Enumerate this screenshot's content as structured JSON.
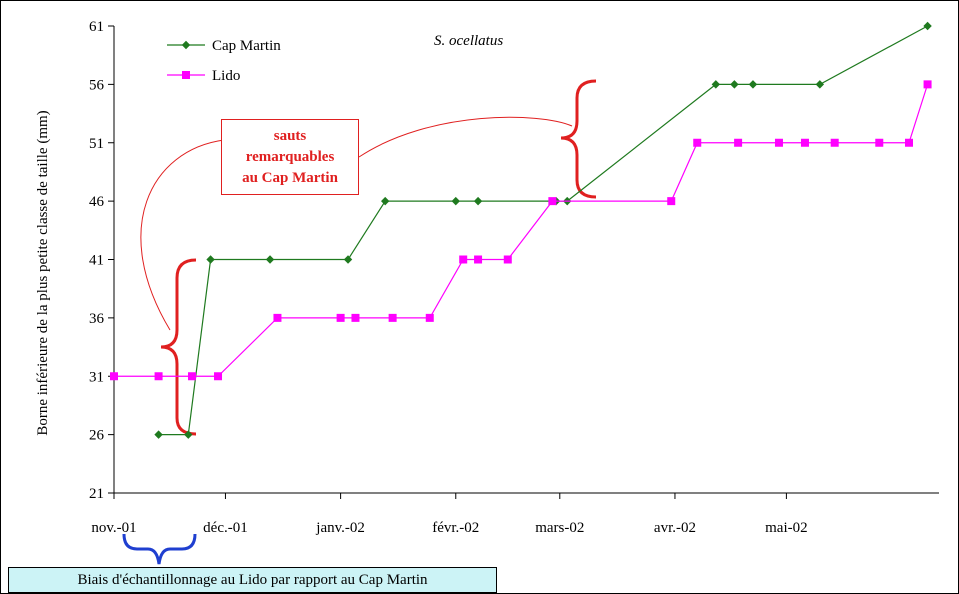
{
  "chart_data": {
    "type": "line",
    "title": "S. ocellatus",
    "ylabel": "Borne inférieure de la plus petite classe de taille (mm)",
    "xlabel": "",
    "ylim": [
      21,
      61
    ],
    "yticks": [
      21,
      26,
      31,
      36,
      41,
      46,
      51,
      56,
      61
    ],
    "xrange": [
      "2001-11-01",
      "2002-06-10"
    ],
    "xticks": [
      {
        "date": "2001-11-01",
        "label": "nov.-01"
      },
      {
        "date": "2001-12-01",
        "label": "déc.-01"
      },
      {
        "date": "2002-01-01",
        "label": "janv.-02"
      },
      {
        "date": "2002-02-01",
        "label": "févr.-02"
      },
      {
        "date": "2002-03-01",
        "label": "mars-02"
      },
      {
        "date": "2002-04-01",
        "label": "avr.-02"
      },
      {
        "date": "2002-05-01",
        "label": "mai-02"
      }
    ],
    "grid": false,
    "legend_position": "top-left",
    "series": [
      {
        "name": "Cap Martin",
        "color": "#1f7a1f",
        "marker": "diamond",
        "points": [
          [
            "2001-11-13",
            26
          ],
          [
            "2001-11-21",
            26
          ],
          [
            "2001-11-27",
            41
          ],
          [
            "2001-12-13",
            41
          ],
          [
            "2002-01-03",
            41
          ],
          [
            "2002-01-13",
            46
          ],
          [
            "2002-02-01",
            46
          ],
          [
            "2002-02-07",
            46
          ],
          [
            "2002-02-28",
            46
          ],
          [
            "2002-03-03",
            46
          ],
          [
            "2002-04-12",
            56
          ],
          [
            "2002-04-17",
            56
          ],
          [
            "2002-04-22",
            56
          ],
          [
            "2002-05-10",
            56
          ],
          [
            "2002-06-08",
            61
          ]
        ]
      },
      {
        "name": "Lido",
        "color": "#ff00ff",
        "marker": "square",
        "points": [
          [
            "2001-11-01",
            31
          ],
          [
            "2001-11-13",
            31
          ],
          [
            "2001-11-22",
            31
          ],
          [
            "2001-11-29",
            31
          ],
          [
            "2001-12-15",
            36
          ],
          [
            "2002-01-01",
            36
          ],
          [
            "2002-01-05",
            36
          ],
          [
            "2002-01-15",
            36
          ],
          [
            "2002-01-25",
            36
          ],
          [
            "2002-02-03",
            41
          ],
          [
            "2002-02-07",
            41
          ],
          [
            "2002-02-15",
            41
          ],
          [
            "2002-02-27",
            46
          ],
          [
            "2002-03-31",
            46
          ],
          [
            "2002-04-07",
            51
          ],
          [
            "2002-04-18",
            51
          ],
          [
            "2002-04-29",
            51
          ],
          [
            "2002-05-06",
            51
          ],
          [
            "2002-05-14",
            51
          ],
          [
            "2002-05-26",
            51
          ],
          [
            "2002-06-03",
            51
          ],
          [
            "2002-06-08",
            56
          ]
        ]
      }
    ],
    "annotations": {
      "jumps_lines": [
        "sauts",
        "remarquables",
        "au Cap Martin"
      ],
      "jumps_color": "#e02020",
      "bias_text": "Biais d'échantillonnage au Lido par rapport au Cap Martin",
      "bias_color": "#ccf3f6",
      "bias_brace_color": "#1f3fd0"
    }
  }
}
